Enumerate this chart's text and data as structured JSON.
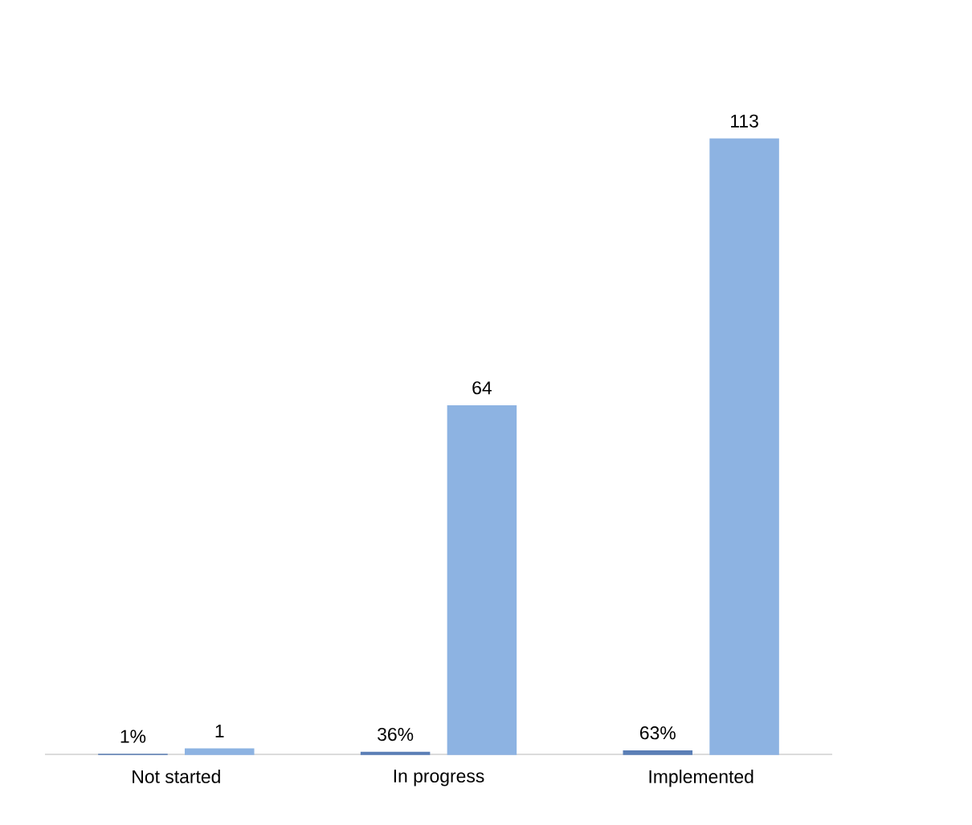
{
  "chart_data": {
    "type": "bar",
    "categories": [
      "Not started",
      "In progress",
      "Implemented"
    ],
    "tick_labels": "x",
    "series": [
      {
        "color": "#5b7fb6",
        "values": [
          0.01,
          0.36,
          0.63
        ],
        "value_labels": [
          "1%",
          "36%",
          "63%"
        ]
      },
      {
        "color": "#8db3e2",
        "values": [
          1,
          64,
          113
        ],
        "value_labels": [
          "1",
          "64",
          "113"
        ]
      }
    ]
  }
}
